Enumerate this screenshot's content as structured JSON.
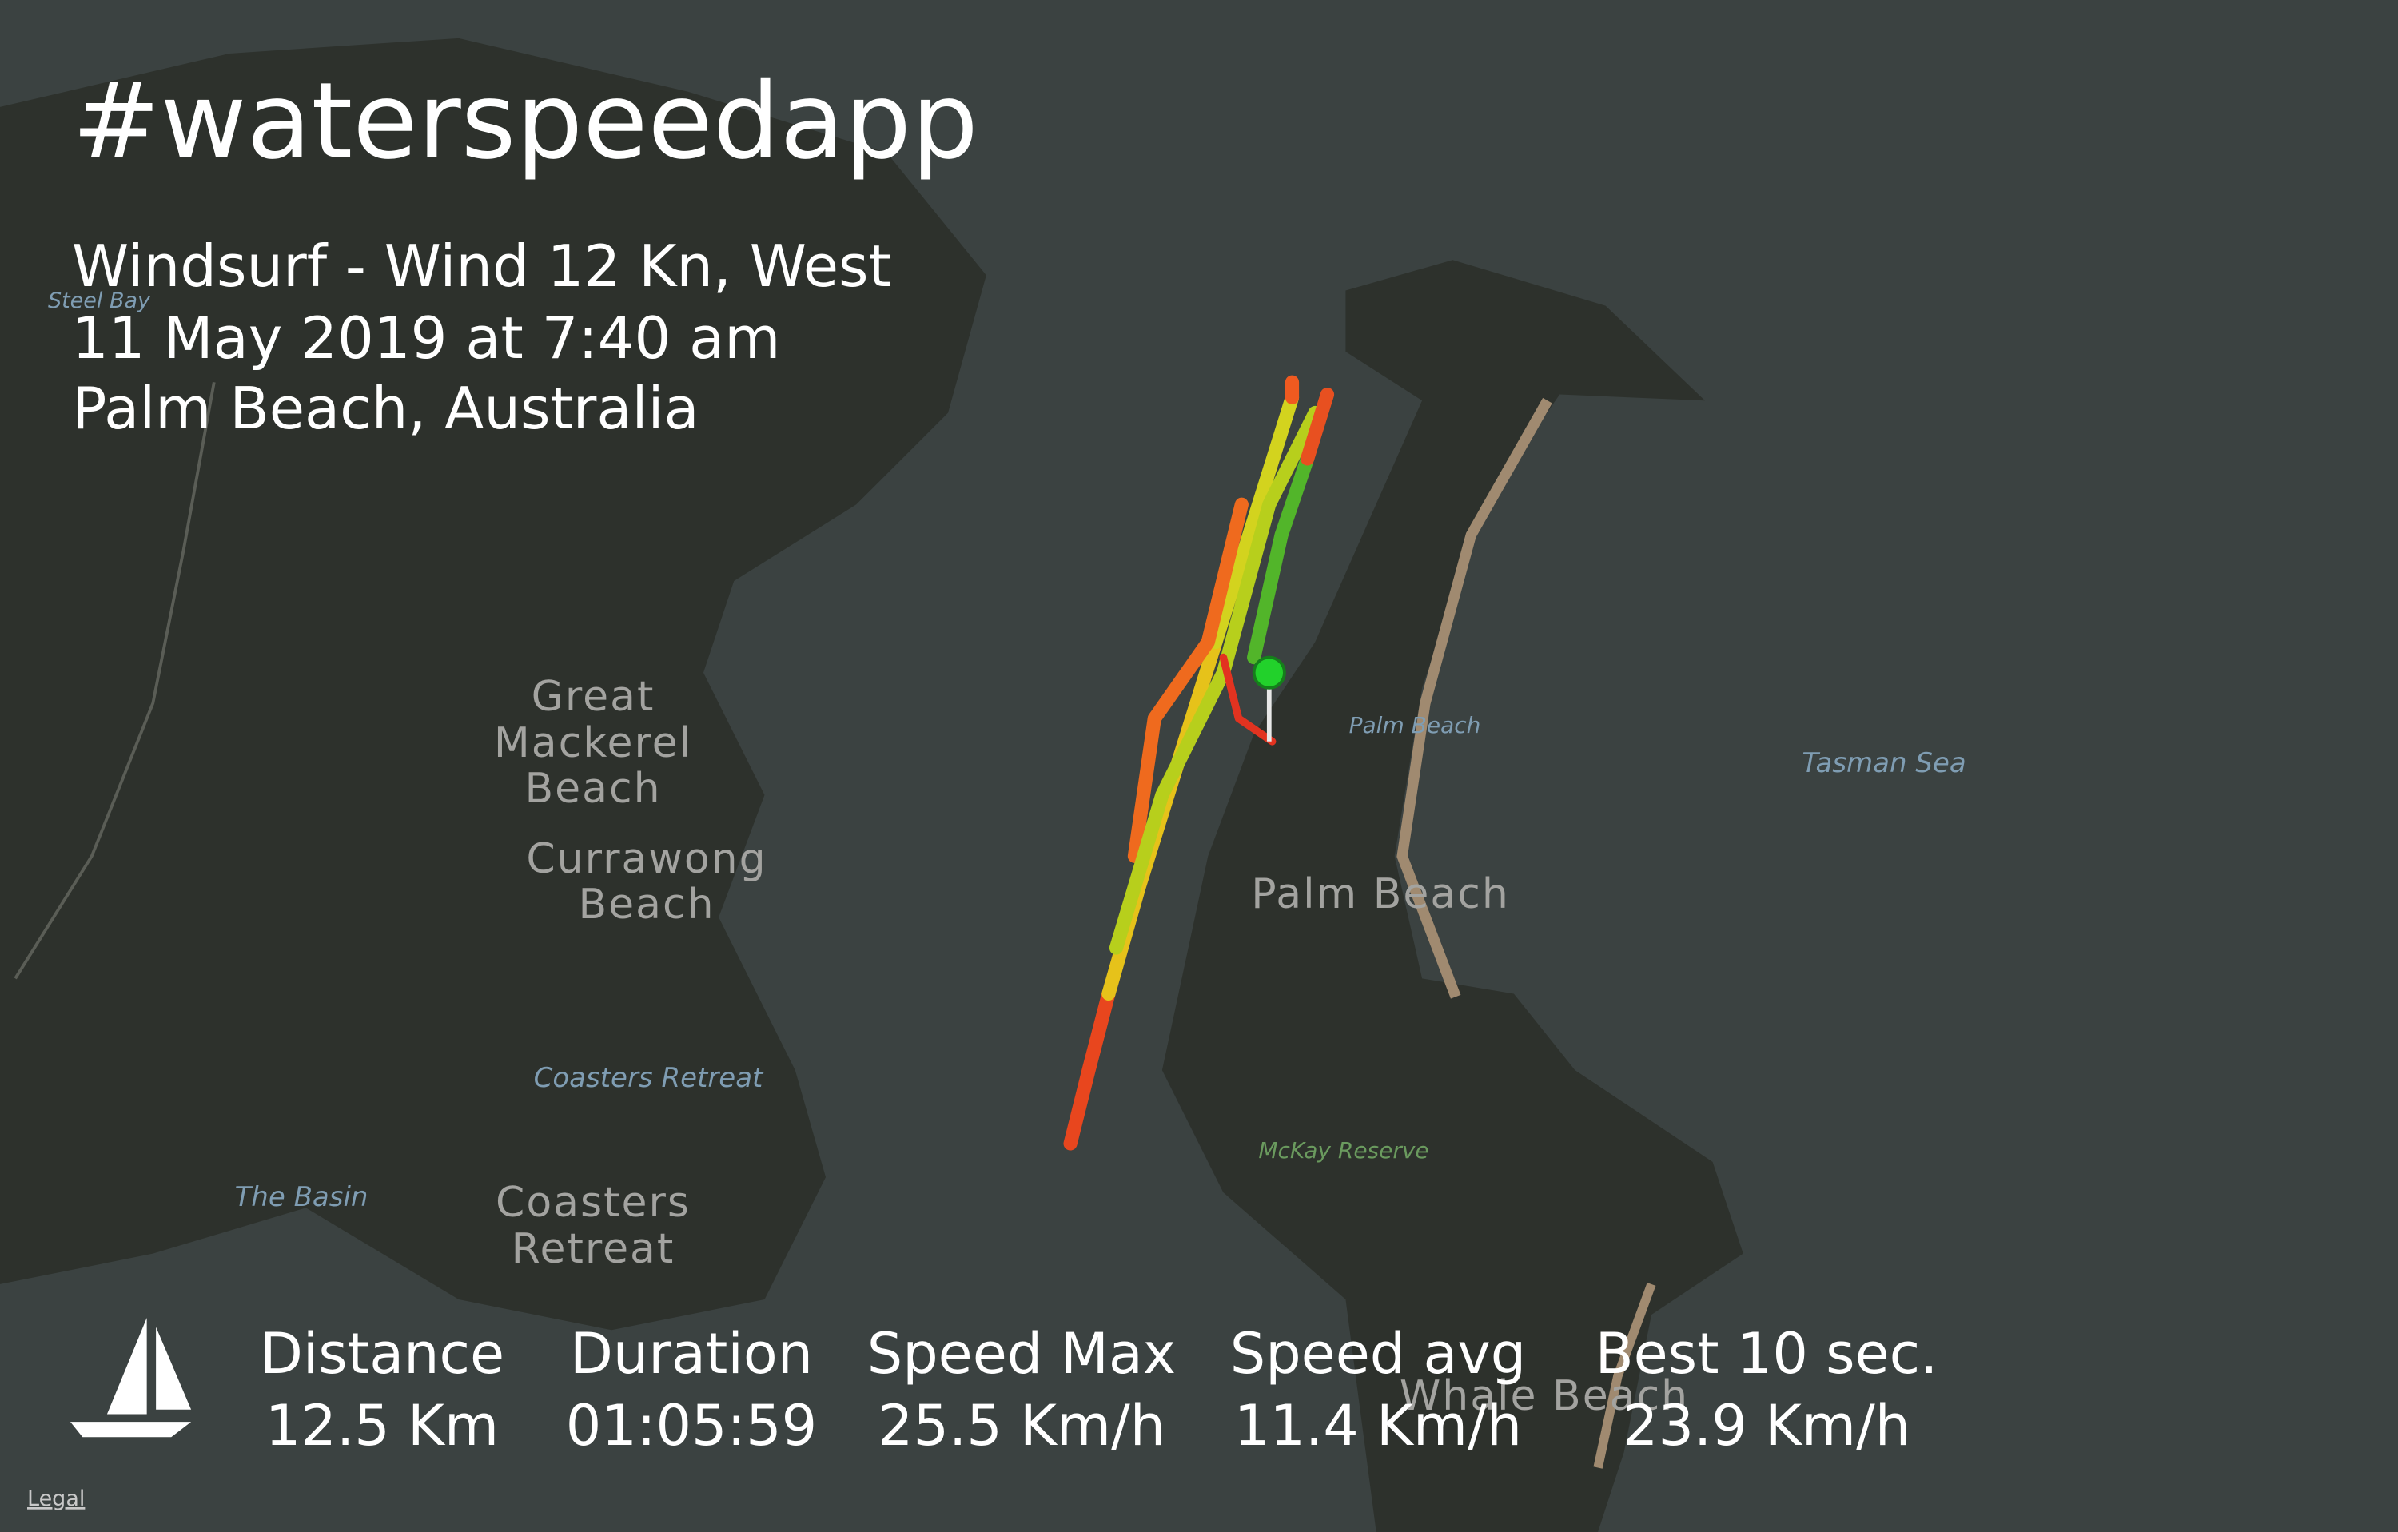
{
  "header": {
    "title": "#waterspeedapp",
    "subtitle": [
      "Windsurf - Wind 12 Kn, West",
      "11 May 2019 at 7:40 am",
      "Palm Beach, Australia"
    ]
  },
  "map_labels": {
    "great_mackerel_beach": [
      "Great",
      "Mackerel",
      "Beach"
    ],
    "currawong_beach": [
      "Currawong",
      "Beach"
    ],
    "palm_beach_suburb": "Palm Beach",
    "palm_beach_beach": "Palm Beach",
    "tasman_sea": "Tasman Sea",
    "coasters_retreat_water": "Coasters Retreat",
    "the_basin": "The Basin",
    "coasters_retreat_land": [
      "Coasters",
      "Retreat"
    ],
    "mckay_reserve": "McKay Reserve",
    "whale_beach": "Whale Beach",
    "steel_bay": "Steel Bay"
  },
  "stats": [
    {
      "label": "Distance",
      "value": "12.5 Km"
    },
    {
      "label": "Duration",
      "value": "01:05:59"
    },
    {
      "label": "Speed Max",
      "value": "25.5 Km/h"
    },
    {
      "label": "Speed avg",
      "value": "11.4 Km/h"
    },
    {
      "label": "Best 10 sec.",
      "value": "23.9 Km/h"
    }
  ],
  "legal": "Legal"
}
